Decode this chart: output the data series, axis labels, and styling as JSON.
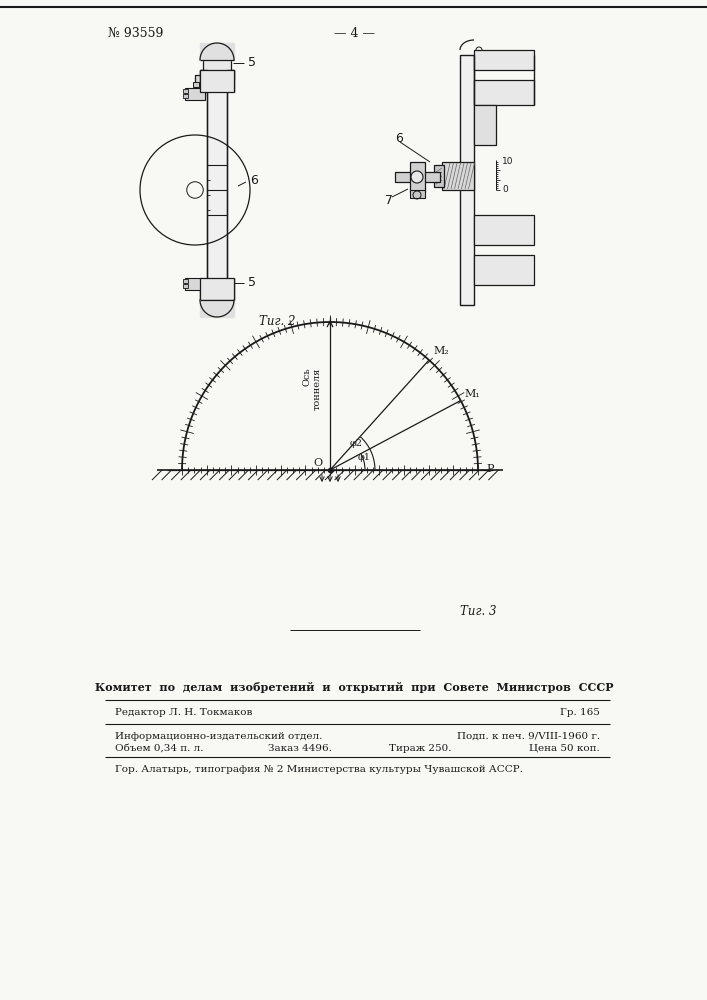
{
  "title_left": "№ 93559",
  "title_center": "— 4 —",
  "fig2_label": "Τиг. 2",
  "fig3_label": "Τиг. 3",
  "label_5a": "5",
  "label_5b": "5",
  "label_6a": "6",
  "label_6b": "6",
  "label_7": "7",
  "label_10": "10",
  "label_0": "0",
  "fig3_axis_label": "Ось тоннеля",
  "fig3_O": "O",
  "fig3_phi1": "φ1",
  "fig3_phi2": "φ2",
  "fig3_M1": "M₁",
  "fig3_M2": "M₂",
  "fig3_P": "P",
  "footer_bold": "Комитет  по  делам  изобретений  и  открытий  при  Совете  Министров  СССР",
  "editor_line": "Редактор Л. Н. Токмаков",
  "gr_line": "Гр. 165",
  "info_line1": "Информационно-издательский отдел.",
  "info_line1r": "Подп. к печ. 9/VIII-1960 г.",
  "info_line2": "Объем 0,34 п. л.",
  "info_line2m": "Заказ 4496.",
  "info_line2m2": "Тираж 250.",
  "info_line2r": "Цена 50 коп.",
  "info_line3": "Гор. Алатырь, типография № 2 Министерства культуры Чувашской АССР.",
  "bg_color": "#f8f8f5",
  "line_color": "#1a1a1a",
  "fig_color": "#1a1a1a"
}
